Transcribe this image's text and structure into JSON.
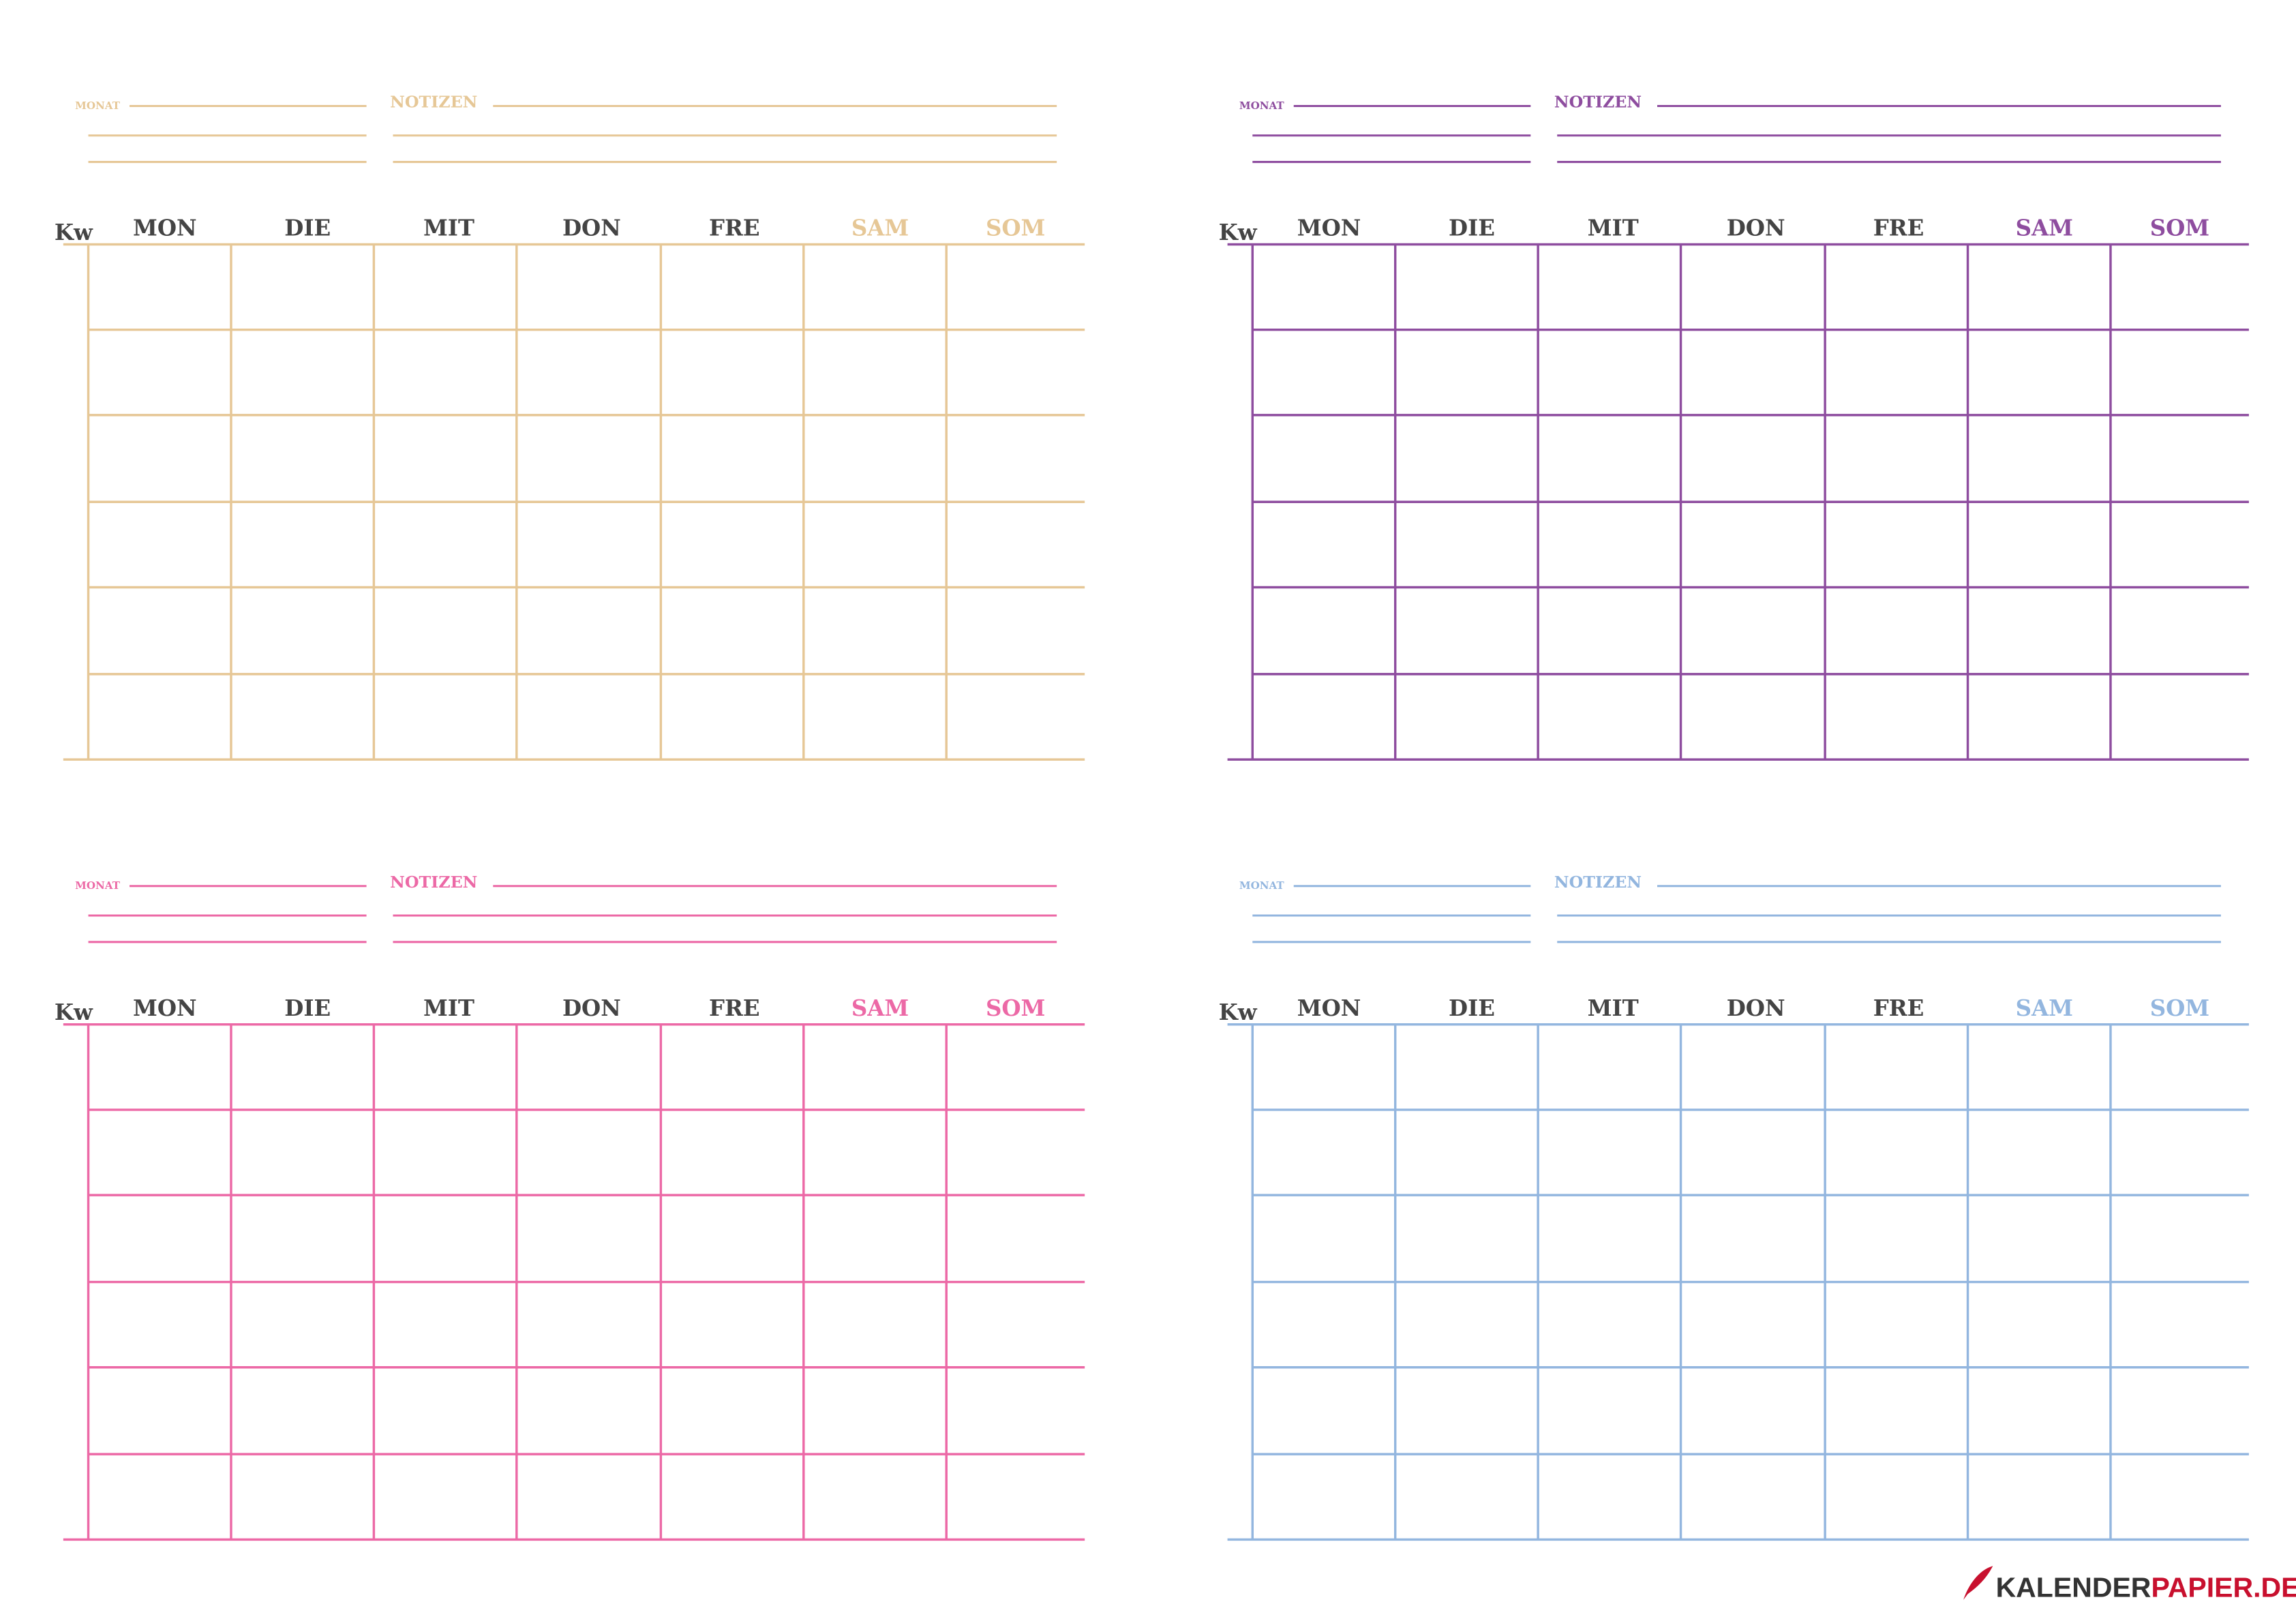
{
  "calendars": [
    {
      "color": "#e6c796",
      "monat": "MONAT",
      "notizen": "NOTIZEN",
      "kw": "Kw",
      "days": [
        "MON",
        "DIE",
        "MIT",
        "DON",
        "FRE",
        "SAM",
        "SOM"
      ]
    },
    {
      "color": "#8e4d9f",
      "monat": "MONAT",
      "notizen": "NOTIZEN",
      "kw": "Kw",
      "days": [
        "MON",
        "DIE",
        "MIT",
        "DON",
        "FRE",
        "SAM",
        "SOM"
      ]
    },
    {
      "color": "#ec69a6",
      "monat": "MONAT",
      "notizen": "NOTIZEN",
      "kw": "Kw",
      "days": [
        "MON",
        "DIE",
        "MIT",
        "DON",
        "FRE",
        "SAM",
        "SOM"
      ]
    },
    {
      "color": "#93b6df",
      "monat": "MONAT",
      "notizen": "NOTIZEN",
      "kw": "Kw",
      "days": [
        "MON",
        "DIE",
        "MIT",
        "DON",
        "FRE",
        "SAM",
        "SOM"
      ]
    }
  ],
  "logo": {
    "part1": "KALENDER",
    "part2": "PAPIER.DE"
  }
}
